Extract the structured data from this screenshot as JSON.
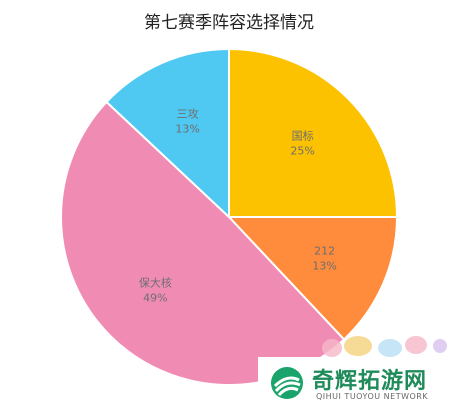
{
  "chart_data": {
    "type": "pie",
    "title": "第七赛季阵容选择情况",
    "slices": [
      {
        "label": "国标",
        "value": 25,
        "value_label": "25%",
        "color": "#fcc200"
      },
      {
        "label": "212",
        "value": 13,
        "value_label": "13%",
        "color": "#ff8c3c"
      },
      {
        "label": "保大核",
        "value": 49,
        "value_label": "49%",
        "color": "#f08cb4"
      },
      {
        "label": "三攻",
        "value": 13,
        "value_label": "13%",
        "color": "#4fc8f2"
      }
    ],
    "start_angle": "top, clockwise"
  },
  "watermark": {
    "name": "奇辉拓游网",
    "subtitle": "QIHUI TUOYOU NETWORK"
  }
}
